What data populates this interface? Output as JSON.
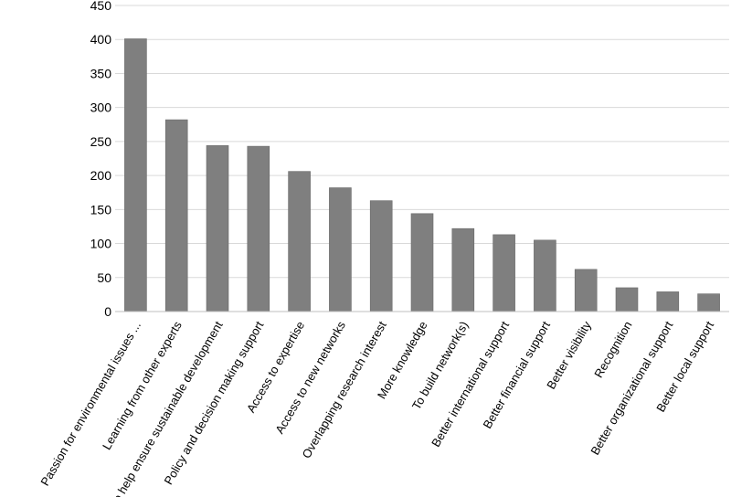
{
  "chart_data": {
    "type": "bar",
    "categories": [
      "Passion for environmental issues ...",
      "Learning from other experts",
      "To help ensure sustainable development",
      "Policy and decision making support",
      "Access to expertise",
      "Access to new networks",
      "Overlapping research interest",
      "More knowledge",
      "To build network(s)",
      "Better international support",
      "Better financial support",
      "Better visibility",
      "Recognition",
      "Better organizational support",
      "Better local support"
    ],
    "values": [
      401,
      282,
      244,
      243,
      206,
      182,
      163,
      144,
      122,
      113,
      105,
      62,
      35,
      29,
      26
    ],
    "ylim": [
      0,
      450
    ],
    "yticks": [
      0,
      50,
      100,
      150,
      200,
      250,
      300,
      350,
      400,
      450
    ],
    "grid": true,
    "colors": {
      "bar": "#7f7f7f",
      "grid": "#d9d9d9"
    }
  }
}
